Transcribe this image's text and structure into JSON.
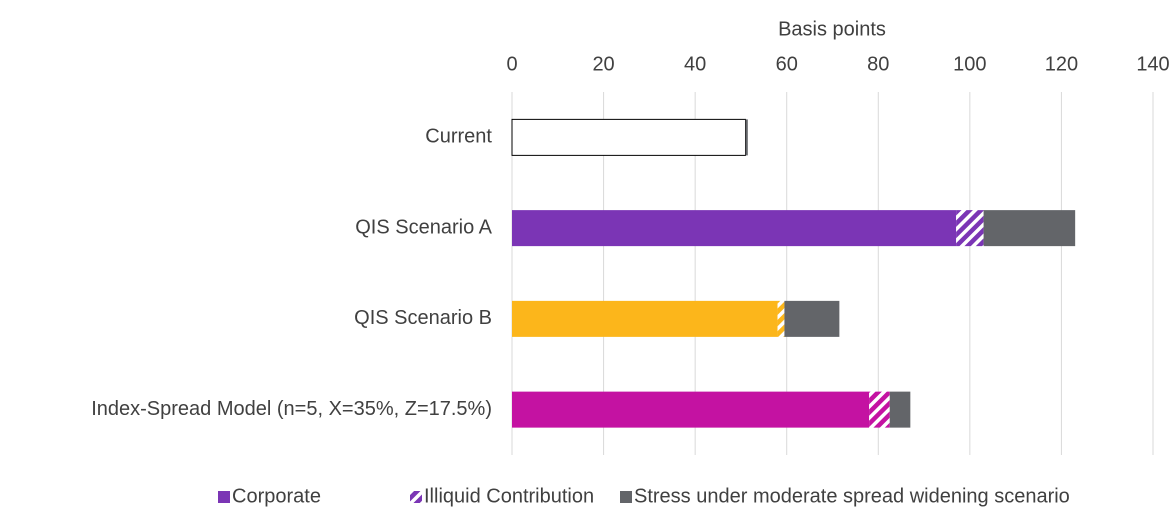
{
  "chart_data": {
    "type": "stacked_bar_horizontal",
    "x_axis_label": "Basis points",
    "categories": [
      "Current",
      "QIS Scenario A",
      "QIS Scenario B",
      "Index-Spread Model (n=5, X=35%, Z=17.5%)"
    ],
    "series": [
      {
        "name": "Corporate",
        "color": "#7b35b5",
        "colors": [
          "#ffffff",
          "#7b35b5",
          "#fcb61b",
          "#c412a2"
        ],
        "values": [
          51,
          97,
          58,
          78
        ]
      },
      {
        "name": "Illiquid Contribution",
        "color": "#7b35b5",
        "hatch": true,
        "values": [
          0,
          6,
          1.5,
          4.5
        ]
      },
      {
        "name": "Stress under moderate spread widening scenario",
        "color": "#636569",
        "values": [
          0.5,
          20,
          12,
          4.5
        ]
      }
    ],
    "xlim": [
      0,
      140
    ],
    "xticks": [
      0,
      20,
      40,
      60,
      80,
      100,
      120,
      140
    ],
    "grid": true,
    "legend": "bottom"
  }
}
